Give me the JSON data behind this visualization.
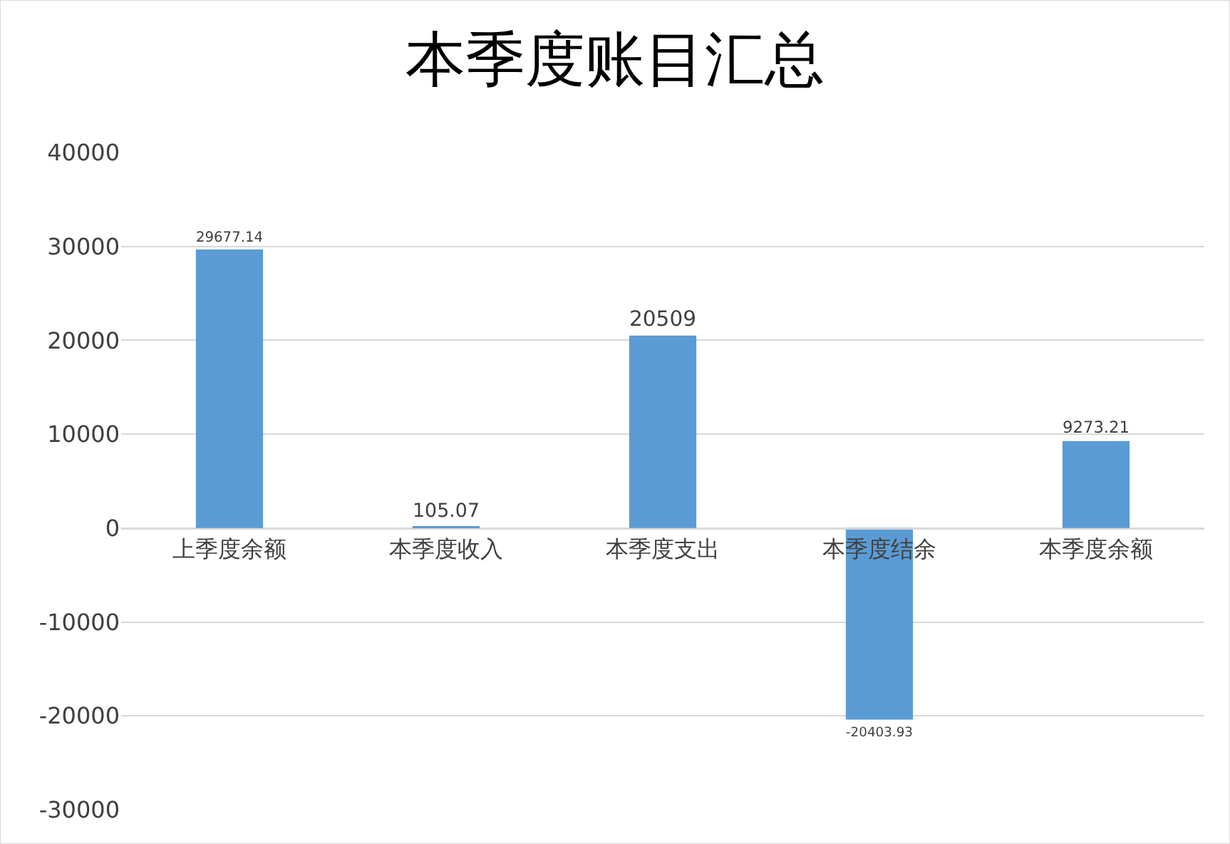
{
  "chart_data": {
    "type": "bar",
    "title": "本季度账目汇总",
    "categories": [
      "上季度余额",
      "本季度收入",
      "本季度支出",
      "本季度结余",
      "本季度余额"
    ],
    "values": [
      29677.14,
      105.07,
      20509,
      -20403.93,
      9273.21
    ],
    "color": "#5b9bd5",
    "ylim": [
      -30000,
      40000
    ],
    "yticks": [
      -30000,
      -20000,
      -10000,
      0,
      10000,
      20000,
      30000,
      40000
    ],
    "grid": "y",
    "data_labels": true
  }
}
